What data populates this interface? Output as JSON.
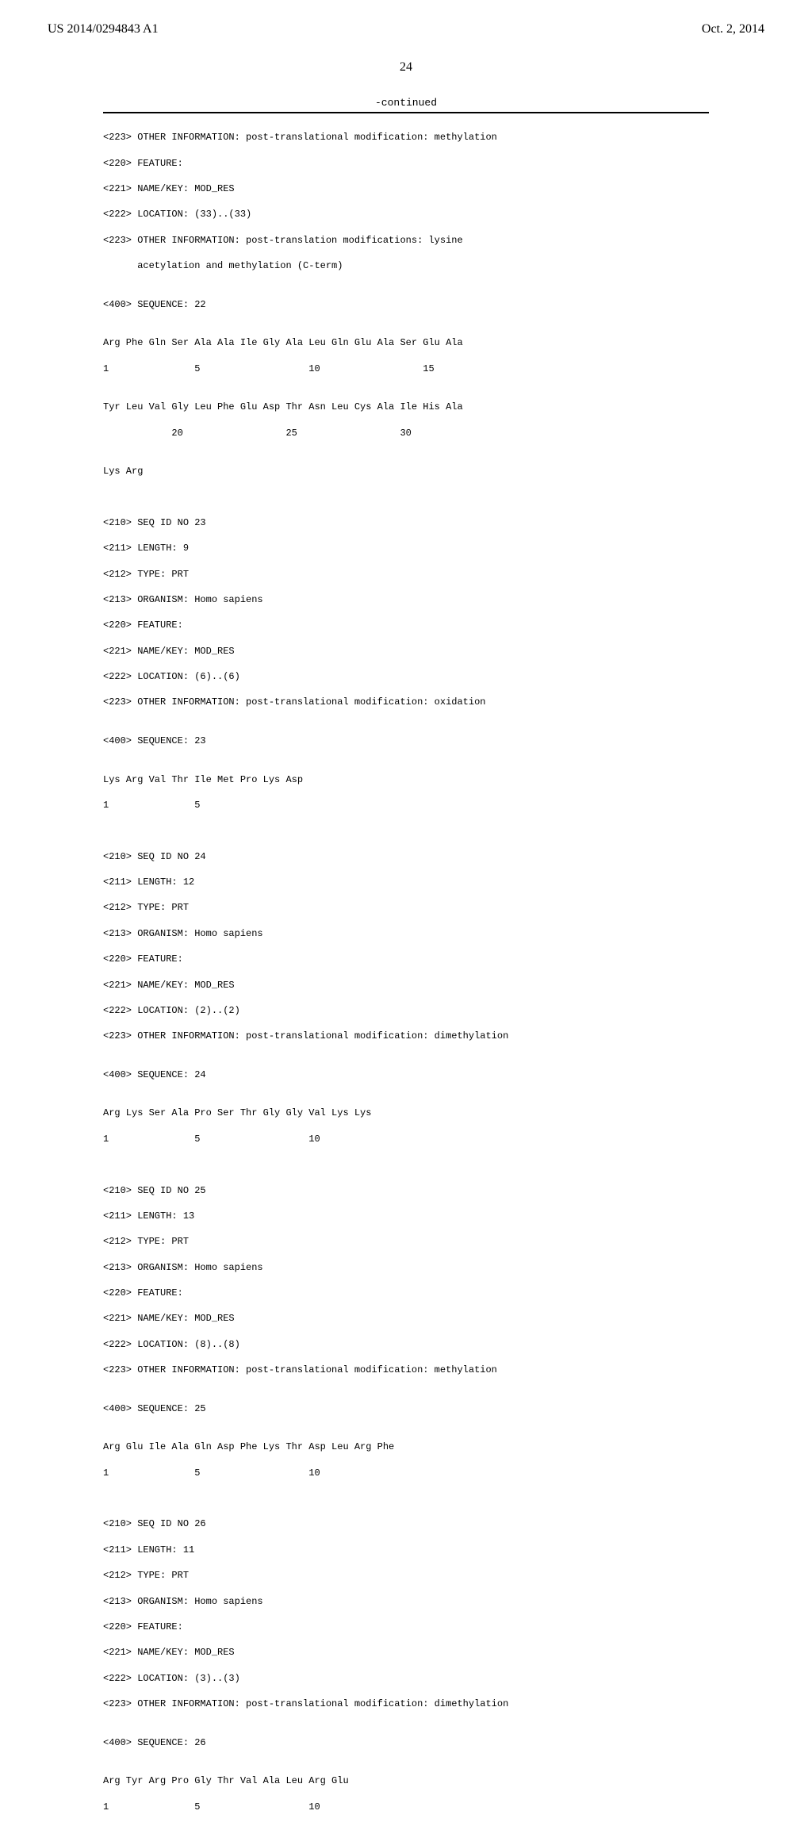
{
  "header": {
    "left": "US 2014/0294843 A1",
    "right": "Oct. 2, 2014"
  },
  "page_number": "24",
  "continued": "-continued",
  "seq": {
    "l01": "<223> OTHER INFORMATION: post-translational modification: methylation",
    "l02": "<220> FEATURE:",
    "l03": "<221> NAME/KEY: MOD_RES",
    "l04": "<222> LOCATION: (33)..(33)",
    "l05": "<223> OTHER INFORMATION: post-translation modifications: lysine",
    "l06": "      acetylation and methylation (C-term)",
    "l07": "",
    "l08": "<400> SEQUENCE: 22",
    "l09": "",
    "l10": "Arg Phe Gln Ser Ala Ala Ile Gly Ala Leu Gln Glu Ala Ser Glu Ala",
    "l11": "1               5                   10                  15",
    "l12": "",
    "l13": "Tyr Leu Val Gly Leu Phe Glu Asp Thr Asn Leu Cys Ala Ile His Ala",
    "l14": "            20                  25                  30",
    "l15": "",
    "l16": "Lys Arg",
    "l17": "",
    "l18": "",
    "l19": "<210> SEQ ID NO 23",
    "l20": "<211> LENGTH: 9",
    "l21": "<212> TYPE: PRT",
    "l22": "<213> ORGANISM: Homo sapiens",
    "l23": "<220> FEATURE:",
    "l24": "<221> NAME/KEY: MOD_RES",
    "l25": "<222> LOCATION: (6)..(6)",
    "l26": "<223> OTHER INFORMATION: post-translational modification: oxidation",
    "l27": "",
    "l28": "<400> SEQUENCE: 23",
    "l29": "",
    "l30": "Lys Arg Val Thr Ile Met Pro Lys Asp",
    "l31": "1               5",
    "l32": "",
    "l33": "",
    "l34": "<210> SEQ ID NO 24",
    "l35": "<211> LENGTH: 12",
    "l36": "<212> TYPE: PRT",
    "l37": "<213> ORGANISM: Homo sapiens",
    "l38": "<220> FEATURE:",
    "l39": "<221> NAME/KEY: MOD_RES",
    "l40": "<222> LOCATION: (2)..(2)",
    "l41": "<223> OTHER INFORMATION: post-translational modification: dimethylation",
    "l42": "",
    "l43": "<400> SEQUENCE: 24",
    "l44": "",
    "l45": "Arg Lys Ser Ala Pro Ser Thr Gly Gly Val Lys Lys",
    "l46": "1               5                   10",
    "l47": "",
    "l48": "",
    "l49": "<210> SEQ ID NO 25",
    "l50": "<211> LENGTH: 13",
    "l51": "<212> TYPE: PRT",
    "l52": "<213> ORGANISM: Homo sapiens",
    "l53": "<220> FEATURE:",
    "l54": "<221> NAME/KEY: MOD_RES",
    "l55": "<222> LOCATION: (8)..(8)",
    "l56": "<223> OTHER INFORMATION: post-translational modification: methylation",
    "l57": "",
    "l58": "<400> SEQUENCE: 25",
    "l59": "",
    "l60": "Arg Glu Ile Ala Gln Asp Phe Lys Thr Asp Leu Arg Phe",
    "l61": "1               5                   10",
    "l62": "",
    "l63": "",
    "l64": "<210> SEQ ID NO 26",
    "l65": "<211> LENGTH: 11",
    "l66": "<212> TYPE: PRT",
    "l67": "<213> ORGANISM: Homo sapiens",
    "l68": "<220> FEATURE:",
    "l69": "<221> NAME/KEY: MOD_RES",
    "l70": "<222> LOCATION: (3)..(3)",
    "l71": "<223> OTHER INFORMATION: post-translational modification: dimethylation",
    "l72": "",
    "l73": "<400> SEQUENCE: 26",
    "l74": "",
    "l75": "Arg Tyr Arg Pro Gly Thr Val Ala Leu Arg Glu",
    "l76": "1               5                   10"
  }
}
